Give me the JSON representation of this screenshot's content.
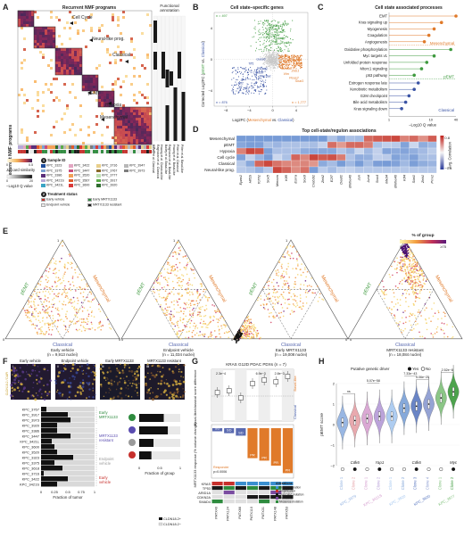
{
  "panels": {
    "A": "A",
    "B": "B",
    "C": "C",
    "D": "D",
    "E": "E",
    "F": "F",
    "G": "G",
    "H": "H"
  },
  "A": {
    "title": "Recurrent NMF programs",
    "ylabel": "Recurrent NMF programs",
    "func_title": "Functional annotation",
    "programs": [
      "Cell Cycle",
      "Neural-like prog.",
      "Classical",
      "pEMT",
      "Hypoxia",
      "Mesenchymal"
    ],
    "func_labels": [
      "Bailey et al. Classical",
      "Raghavan et al. Classical",
      "Hwang et al. Classical-like",
      "Bailey et al. Basal-like",
      "Raghavan et al. Basal-like",
      "Hwang et al. Basal-like",
      "Pitter et al. Classical",
      "Pitter et al. Basal-like"
    ],
    "legend_jaccard": "Jaccard similarity",
    "jac_min": "0",
    "jac_max": "0.5",
    "legend_q": "−Log10 Q value",
    "q_min": "0",
    "q_max": "20",
    "sample_heading": "Sample ID",
    "sample_num": "1",
    "samples": [
      {
        "id": "KPC_3323",
        "color": "#1f4e9c"
      },
      {
        "id": "KPC_3422",
        "color": "#e2a6c2"
      },
      {
        "id": "KPC_3716",
        "color": "#e8cf8a"
      },
      {
        "id": "KPC_3947",
        "color": "#b8b8b8"
      },
      {
        "id": "KPC_3375",
        "color": "#7a9fd0"
      },
      {
        "id": "KPC_3447",
        "color": "#c94c7c"
      },
      {
        "id": "KPC_3767",
        "color": "#8a6a2a"
      },
      {
        "id": "KPC_3973",
        "color": "#7d7d7d"
      },
      {
        "id": "KPC_3386",
        "color": "#5a2e7a"
      },
      {
        "id": "KPC_3520",
        "color": "#f2a058"
      },
      {
        "id": "KPC_3777",
        "color": "#bde0b2"
      },
      {
        "id": "",
        "color": ""
      },
      {
        "id": "KPC_3421S",
        "color": "#b7a8d6"
      },
      {
        "id": "KPC_3567",
        "color": "#e05a2b"
      },
      {
        "id": "KPC_3917",
        "color": "#5aab4a"
      },
      {
        "id": "",
        "color": ""
      },
      {
        "id": "KPC_3421L",
        "color": "#3ba4c4"
      },
      {
        "id": "KPC_3600",
        "color": "#d93a3a"
      },
      {
        "id": "KPC_3920",
        "color": "#2f6e2f"
      },
      {
        "id": "",
        "color": ""
      }
    ],
    "treat_heading": "Treatment status",
    "treat_num": "2",
    "treatments": [
      {
        "label": "Early vehicle",
        "color": "#c7302c"
      },
      {
        "label": "Early MRTX1133",
        "color": "#2e8b3e"
      },
      {
        "label": "Endpoint vehicle",
        "color": "#ececec"
      },
      {
        "label": "MRTX1133 resistant",
        "color": "#1a1a1a"
      }
    ]
  },
  "B": {
    "title": "Cell state–specific genes",
    "ylabel_a": "Corrected Log2FC (",
    "ylabel_b": "pEMT",
    "ylabel_c": " vs. ",
    "ylabel_d": "Classical",
    "ylabel_e": ")",
    "xlabel_a": "Log2FC (",
    "xlabel_b": "Mesenchymal",
    "xlabel_c": " vs. ",
    "xlabel_d": "Classical",
    "xlabel_e": ")",
    "n_top": "n = 497",
    "n_right": "n = 1,777",
    "n_left": "n = 876",
    "xticks": [
      "−8",
      "−4",
      "0",
      "4"
    ],
    "yticks": [
      "−4",
      "0",
      "4"
    ],
    "green_genes": [
      "Mif",
      "S100a11",
      "Junb",
      "S100a6",
      "Sox9",
      "S100a4",
      "Prdm1",
      "Klf4",
      "Ptn",
      "Krt8",
      "Epcam"
    ],
    "orange_genes": [
      "Anxa2",
      "Twist1",
      "Ahnak",
      "Zeb1",
      "Vim",
      "Peas2",
      "Snai1"
    ],
    "blue_genes": [
      "Gata6",
      "Tff1",
      "Foxa2",
      "Cldn18",
      "Muc5ac",
      "Tff2",
      "Tff3"
    ],
    "colors": {
      "pEMT": "#3f9a3f",
      "Mesenchymal": "#e07a2a",
      "Classical": "#3a53a4"
    }
  },
  "C": {
    "title": "Cell state associated processes",
    "xlabel": "−Log10 Q value",
    "xticks": [
      "1",
      "10",
      "40"
    ],
    "groups": [
      {
        "name": "Mesenchymal",
        "color": "#e07a2a",
        "items": [
          {
            "label": "EMT",
            "q": 40
          },
          {
            "label": "Kras signaling up",
            "q": 18
          },
          {
            "label": "Myogenesis",
            "q": 12
          },
          {
            "label": "Coagulation",
            "q": 9
          },
          {
            "label": "Angiogenesis",
            "q": 7
          }
        ]
      },
      {
        "name": "pEMT",
        "color": "#3f9a3f",
        "items": [
          {
            "label": "Oxidative phosphorylation",
            "q": 30
          },
          {
            "label": "Myc targets v1",
            "q": 12
          },
          {
            "label": "Unfolded protein response",
            "q": 8
          },
          {
            "label": "Mtorc1 signaling",
            "q": 6
          },
          {
            "label": "p53 pathway",
            "q": 4
          }
        ]
      },
      {
        "name": "Classical",
        "color": "#3a53a4",
        "items": [
          {
            "label": "Estrogen response late",
            "q": 5
          },
          {
            "label": "Xenobiotic metabolism",
            "q": 4
          },
          {
            "label": "G2M checkpoint",
            "q": 3
          },
          {
            "label": "Bile acid metabolism",
            "q": 2.5
          },
          {
            "label": "Kras signaling down",
            "q": 2
          }
        ]
      }
    ]
  },
  "D": {
    "title": "Top cell-state/regulon associations",
    "rows": [
      "Mesenchymal",
      "pEMT",
      "Hypoxia",
      "Cell cycle",
      "Classical",
      "Neural-like prog."
    ],
    "cols": [
      "Epas1",
      "Hif1b",
      "Tcf7l1",
      "Sox5",
      "Mecom",
      "Klf5",
      "Esrra",
      "Sox6",
      "Creb3l1",
      "Zeb2",
      "E2f7",
      "Deaf1",
      "Bhlhe40",
      "Jun",
      "Jund",
      "Sox4",
      "Mxd4",
      "Bhlhe40 ",
      "Klf4",
      "Stat1",
      "Zeb1",
      "Prrx1"
    ],
    "legend_title": "Avg. Correlation",
    "lmin": "−0.8",
    "lmax": "0.8"
  },
  "E": {
    "legend_title": "% of group",
    "lmin": "0",
    "lmax": "≥75",
    "plots": [
      {
        "title": "Early vehicle",
        "n": "(n = 9,913 nuclei)"
      },
      {
        "title": "Endpoint vehicle",
        "n": "(n = 11,034 nuclei)"
      },
      {
        "title": "Early MRTX1133",
        "n": "(n = 19,008 nuclei)"
      },
      {
        "title": "MRTX1133 resistant",
        "n": "(n = 18,084 nuclei)"
      }
    ],
    "left_axis": "pEMT",
    "right_axis": "Mesenchymal",
    "bottom_axis": "Classical",
    "tick_one": "1",
    "tick_zero": "0"
  },
  "F": {
    "images": [
      "Early vehicle",
      "Endpoint vehicle",
      "Early MRTX1133",
      "MRTX1133 resistant"
    ],
    "stain": "CLDN18.2 / DAPI",
    "samples": [
      "KPC_3767",
      "KPC_3917",
      "KPC_3973",
      "KPC_3920",
      "KPC_3386",
      "KPC_3447",
      "KPC_3421L",
      "KPC_3600",
      "KPC_3520",
      "KPC_3323",
      "KPC_3375",
      "KPC_3618",
      "KPC_3716",
      "KPC_3422",
      "KPC_3421S"
    ],
    "fraction": [
      0.1,
      0.5,
      0.55,
      0.3,
      0.3,
      0.55,
      0.2,
      0.25,
      0.3,
      0.6,
      0.25,
      0.4,
      0.05,
      0.5,
      0.3
    ],
    "xlabel": "Fraction of tumor",
    "xticks": [
      "0",
      "0.25",
      "0.5",
      "0.75",
      "1"
    ],
    "groups": [
      "Early MRTX1133",
      "MRTX1133 resistant",
      "Endpoint vehicle",
      "Early vehicle"
    ],
    "group_colors": [
      "#2e8b3e",
      "#5a4cb0",
      "#9a9a9a",
      "#c7302c"
    ],
    "right_xlabel": "Fraction of group",
    "right_xticks": [
      "0",
      "0.5",
      "1"
    ],
    "right_fraction": [
      0.6,
      0.7,
      0.35,
      0.3
    ],
    "legend": [
      "CLDN18.2+",
      "CLDN18.2−"
    ]
  },
  "G": {
    "title": "KRAS G12D PDAC PDXs (n = 7)",
    "ylabel_top": "Basal-like/classical score difference",
    "ylabel_bottom": "MRTX1133 response (% volume change)",
    "pvals": [
      "2.3e−4",
      "6.9e−3",
      "2.8e−3"
    ],
    "samples": [
      "PATX40",
      "PATX124",
      "PATX66",
      "PATX110",
      "PATX31",
      "PATX148",
      "PATX53"
    ],
    "responses": [
      "SD",
      "SD",
      "SD",
      "PR",
      "PR",
      "PR",
      "PR"
    ],
    "response_values": [
      -5,
      -8,
      -12,
      -48,
      -52,
      -60,
      -72
    ],
    "labels": [
      "Basal-like",
      "Classical"
    ],
    "genes": [
      "KRAS",
      "TP53",
      "ARID1A",
      "CDKN2A",
      "SMAD4"
    ],
    "alt_title": "Alterations",
    "alts": [
      {
        "label": "Protein alteration",
        "color": "#3a8fd0"
      },
      {
        "label": "Amplification",
        "color": "#c7302c"
      },
      {
        "label": "Truncated mutation",
        "color": "#1a1a1a"
      },
      {
        "label": "Frameshift",
        "color": "#7a4ca0"
      },
      {
        "label": "Missense mutation",
        "color": "#2e8b3e"
      }
    ],
    "p_resp": "p=0.0006",
    "resp_label": "Responder"
  },
  "H": {
    "title": "Putative genetic driver",
    "yes": "Yes",
    "no": "No",
    "ylabel": "pEMT score",
    "pvals": [
      "ns",
      "5.07e−58",
      "7.33e−43",
      "2.52e−8",
      "5.06e−25"
    ],
    "drivers": [
      "Cdk6",
      "Yap1",
      "Cdk6",
      "Myc"
    ],
    "clones": [
      {
        "sample": "KPC_3379",
        "clone": "Clone 1",
        "color": "#8fb0e0"
      },
      {
        "sample": "",
        "clone": "Clone 2",
        "color": "#e6a0a6"
      },
      {
        "sample": "KPC_3421S",
        "clone": "Clone 1",
        "color": "#d6a0d0"
      },
      {
        "sample": "",
        "clone": "Clone 2",
        "color": "#b49ad6"
      },
      {
        "sample": "KPC_3920",
        "clone": "Clone 1",
        "color": "#a6c8f0"
      },
      {
        "sample": "",
        "clone": "Clone 2",
        "color": "#7aa0d6"
      },
      {
        "sample": "KPC_3600",
        "clone": "Clone 3",
        "color": "#5a78c0"
      },
      {
        "sample": "",
        "clone": "Clone 4",
        "color": "#8a9ad0"
      },
      {
        "sample": "KPC_3977",
        "clone": "Clone 1",
        "color": "#7fc07a"
      },
      {
        "sample": "",
        "clone": "Clone 2",
        "color": "#3a9a3a"
      }
    ],
    "yticks": [
      "−2",
      "−1",
      "0",
      "1",
      "2"
    ]
  }
}
